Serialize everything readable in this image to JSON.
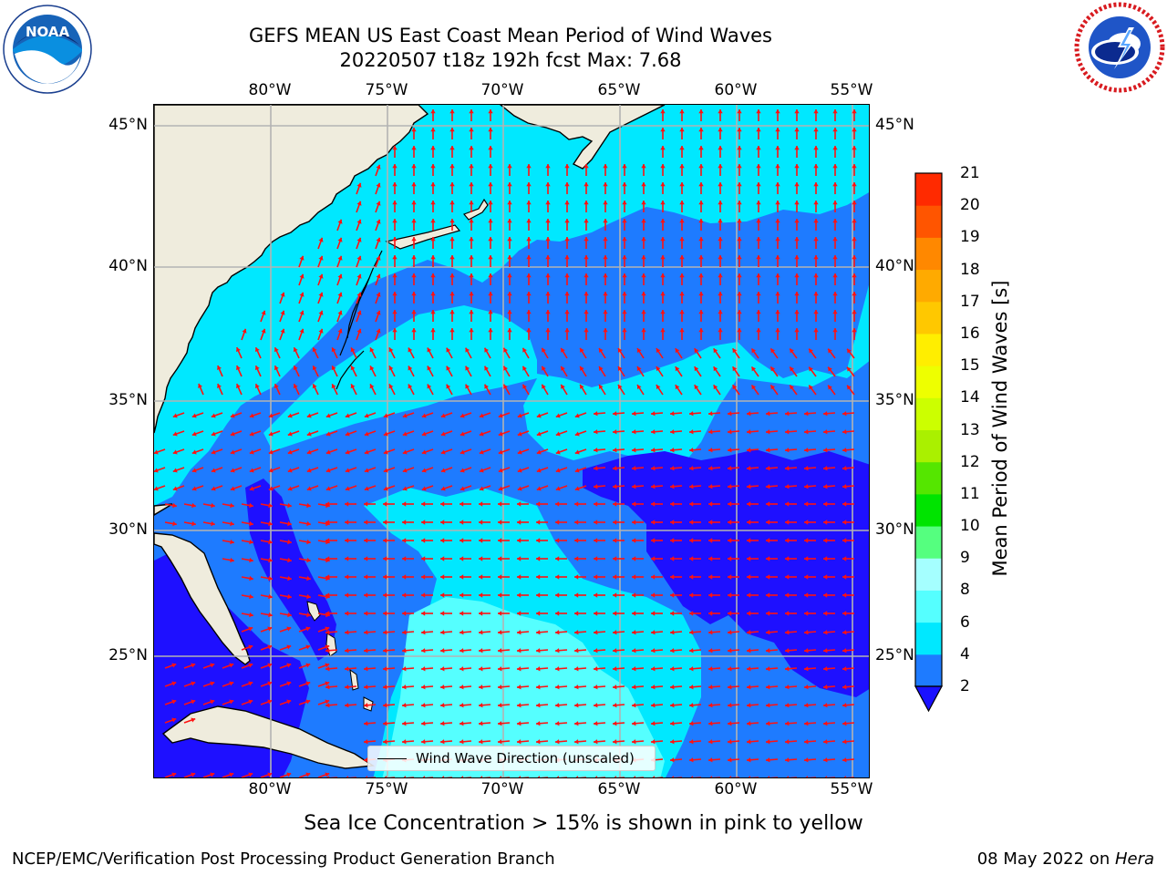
{
  "title": {
    "line1": "GEFS MEAN US East Coast Mean Period of Wind Waves",
    "line2": "20220507 t18z 192h fcst   Max: 7.68"
  },
  "logos": {
    "left": {
      "name": "noaa-logo",
      "text": "NOAA"
    },
    "right": {
      "name": "nws-logo"
    }
  },
  "axes": {
    "lon_labels": [
      "80°W",
      "75°W",
      "70°W",
      "65°W",
      "60°W",
      "55°W"
    ],
    "lat_labels": [
      "45°N",
      "40°N",
      "35°N",
      "30°N",
      "25°N"
    ],
    "lon_values": [
      -80,
      -75,
      -70,
      -65,
      -60,
      -55
    ],
    "lat_values": [
      45,
      40,
      35,
      30,
      25
    ],
    "lon_range": [
      -85,
      -54.3
    ],
    "lat_range": [
      20.5,
      46.1
    ],
    "grid": true
  },
  "legend": {
    "label": "Wind Wave Direction (unscaled)"
  },
  "colorbar": {
    "label": "Mean Period of Wind Waves [s]",
    "ticks": [
      "2",
      "4",
      "6",
      "8",
      "9",
      "10",
      "11",
      "12",
      "13",
      "14",
      "15",
      "16",
      "17",
      "18",
      "19",
      "20",
      "21"
    ],
    "boundaries": [
      2,
      4,
      6,
      8,
      9,
      10,
      11,
      12,
      13,
      14,
      15,
      16,
      17,
      18,
      19,
      20,
      21
    ],
    "colors": [
      "#1e7bff",
      "#00e8ff",
      "#55ffff",
      "#a5ffff",
      "#55ff7f",
      "#00e400",
      "#55e600",
      "#aaf000",
      "#ccff00",
      "#eeff00",
      "#ffee00",
      "#ffc800",
      "#ffaa00",
      "#ff8800",
      "#ff5500",
      "#ff2a00"
    ],
    "under_color": "#1a10ff",
    "extend": "min"
  },
  "map": {
    "land_color": "#efecdd",
    "gridline_color": "#b3b3b3",
    "arrow_color": "#ff1111",
    "shades": {
      "deep": "#1e10ff",
      "blue": "#1e7bff",
      "cyan": "#00e8ff",
      "light": "#55ffff"
    }
  },
  "subtitle": "Sea Ice Concentration > 15% is shown in pink to yellow",
  "footer": {
    "left": "NCEP/EMC/Verification Post Processing Product Generation Branch",
    "right_date": "08 May 2022 on ",
    "right_host": "Hera"
  }
}
